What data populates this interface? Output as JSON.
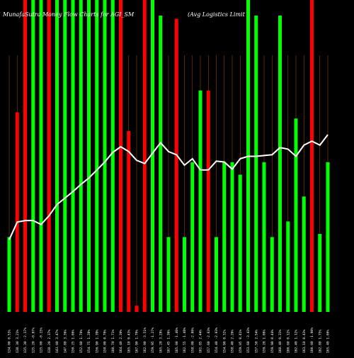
{
  "chart_data": {
    "type": "bar",
    "title_left": "MunafaSutra  Money Flow  Charts for AGI_SM",
    "title_right": "(Avg Logistics Limit",
    "colors": {
      "up": "#00ff00",
      "down": "#ff0000",
      "line": "#ffffff",
      "grid": "#8b4513",
      "background": "#000000"
    },
    "volume_max": 100,
    "price_range": [
      0,
      100
    ],
    "categories": [
      "134.00 0.53%",
      "138.30 3.21%",
      "135.30 -2.17%",
      "135.20 -0.07%",
      "135.00 -0.15%",
      "138.20 2.37%",
      "143.00 3.47%",
      "147.80 3.36%",
      "150.25 1.66%",
      "152.80 1.70%",
      "154.75 1.28%",
      "156.90 1.39%",
      "158.00 0.70%",
      "160.70 1.71%",
      "164.40 2.30%",
      "165.10 0.43%",
      "167.90 1.70%",
      "162.00 -3.51%",
      "159.95 -1.27%",
      "165.20 3.28%",
      "167.45 1.36%",
      "165.00 -1.46%",
      "162.55 -1.48%",
      "158.00 -2.80%",
      "161.85 2.44%",
      "157.60 -2.63%",
      "154.40 -2.03%",
      "154.90 0.32%",
      "158.40 2.26%",
      "159.05 0.41%",
      "153.60 -3.43%",
      "157.50 2.54%",
      "159.20 1.08%",
      "159.90 0.44%",
      "160.40 0.31%",
      "160.60 0.12%",
      "162.40 1.12%",
      "163.10 0.43%",
      "160.00 -1.90%",
      "162.80 1.75%",
      "165.40 1.60%"
    ],
    "volume_up_flags": [
      1,
      0,
      0,
      1,
      1,
      0,
      1,
      1,
      1,
      1,
      1,
      1,
      1,
      1,
      0,
      0,
      0,
      0,
      1,
      1,
      1,
      0,
      1,
      1,
      1,
      0,
      1,
      1,
      1,
      1,
      1,
      1,
      1,
      1,
      1,
      1,
      1,
      1,
      0,
      1,
      1
    ],
    "volume": [
      24,
      64,
      100,
      100,
      100,
      100,
      100,
      100,
      100,
      100,
      100,
      100,
      100,
      100,
      100,
      58,
      2,
      100,
      100,
      95,
      24,
      94,
      24,
      48,
      71,
      71,
      24,
      48,
      48,
      44,
      100,
      95,
      48,
      24,
      95,
      29,
      62,
      37,
      100,
      25,
      48
    ],
    "price": [
      6,
      28,
      30,
      30,
      25,
      36,
      50,
      58,
      66,
      75,
      83,
      93,
      103,
      115,
      122,
      116,
      105,
      101,
      114,
      127,
      116,
      112,
      99,
      107,
      93,
      93,
      104,
      103,
      94,
      107,
      110,
      110,
      111,
      112,
      121,
      119,
      110,
      124,
      129,
      124,
      137
    ]
  }
}
